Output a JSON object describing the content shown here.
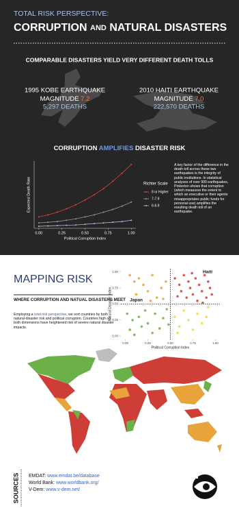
{
  "header": {
    "kicker": "TOTAL RISK PERSPECTIVE:",
    "title_parts": [
      "CORRUPTION",
      "AND",
      "NATURAL DISASTERS"
    ]
  },
  "comparison": {
    "heading": "COMPARABLE DISASTERS YIELD VERY DIFFERENT DEATH TOLLS",
    "events": [
      {
        "name": "1995 KOBE EARTHQUAKE",
        "magnitude_label": "MAGNITUDE",
        "magnitude": "7.2",
        "deaths": "5,297 DEATHS"
      },
      {
        "name": "2010 HAITI EARTHQUAKE",
        "magnitude_label": "MAGNITUDE",
        "magnitude": "7.0",
        "deaths": "222,570 DEATHS"
      }
    ]
  },
  "amplifies": {
    "heading_parts": [
      "CORRUPTION",
      "AMPLIFIES",
      "DISASTER RISK"
    ],
    "note": "A key factor of the difference in the death toll across these two earthquakes is the integrity of public institutions.  In statistical analyses of over 900 earthquakes, Pinkerton shows that corruption (which measures the extent to which an executive or their agents misappropriates public funds for personal use) amplifies the resulting death toll of an earthquake."
  },
  "mapping": {
    "title": "MAPPING RISK",
    "subheading": "WHERE CORRUPTION AND NATUAL DISASTERS MEET",
    "intro_parts": [
      "Employing a ",
      "total risk perspective",
      ", we sort countries by both natural-disaster risk and political corruption.  Countries high on both dimensions have heightened risk of severe natural disaster impacts."
    ]
  },
  "sources": {
    "title": "SOURCES",
    "items": [
      {
        "label": "EMDAT:",
        "url": "www.emdat.be/database"
      },
      {
        "label": "World Bank:",
        "url": "www.worldbank.org/"
      },
      {
        "label": "V-Dem:",
        "url": "www.v-dem.net/"
      }
    ]
  },
  "chart_data": [
    {
      "type": "line",
      "xlabel": "Political Corruption Index",
      "ylabel": "Expected Death Rate",
      "legend_title": "Richter Scale",
      "x": [
        0,
        0.1,
        0.2,
        0.3,
        0.4,
        0.5,
        0.6,
        0.7,
        0.8,
        0.9,
        1
      ],
      "series": [
        {
          "name": "8 or Higher",
          "color": "#e0443a",
          "values": [
            0.17,
            0.2,
            0.24,
            0.29,
            0.35,
            0.42,
            0.5,
            0.59,
            0.7,
            0.82,
            0.95
          ]
        },
        {
          "name": "7-7.9",
          "color": "#9a9a9a",
          "values": [
            0.08,
            0.09,
            0.1,
            0.12,
            0.14,
            0.17,
            0.2,
            0.24,
            0.28,
            0.33,
            0.39
          ]
        },
        {
          "name": "6-6.9",
          "color": "#aebde0",
          "values": [
            0.03,
            0.035,
            0.04,
            0.045,
            0.05,
            0.06,
            0.07,
            0.08,
            0.09,
            0.1,
            0.12
          ]
        }
      ],
      "xlim": [
        -0.05,
        1.05
      ],
      "ylim": [
        0,
        1
      ],
      "xticks": [
        {
          "value": 0,
          "label": "0.00"
        },
        {
          "value": 0.25,
          "label": "0.25"
        },
        {
          "value": 0.5,
          "label": "0.50"
        },
        {
          "value": 0.75,
          "label": "0.75"
        },
        {
          "value": 1,
          "label": "1.00"
        }
      ]
    },
    {
      "type": "scatter",
      "xlabel": "Political Corruption Index",
      "ylabel": "Natural Disaster Index",
      "annotations": [
        "Haiti",
        "Japan"
      ],
      "divider": 0.5,
      "series": [
        {
          "color": "#e8a33a",
          "x": [
            0.05,
            0.1,
            0.15,
            0.2,
            0.25,
            0.3,
            0.35,
            0.4,
            0.45,
            0.12,
            0.28,
            0.42
          ],
          "y": [
            0.95,
            0.85,
            0.9,
            0.8,
            0.7,
            0.95,
            0.6,
            0.75,
            0.85,
            0.65,
            0.55,
            0.58
          ]
        },
        {
          "color": "#cf3e36",
          "x": [
            0.55,
            0.6,
            0.62,
            0.65,
            0.68,
            0.7,
            0.72,
            0.75,
            0.78,
            0.8,
            0.82,
            0.85,
            0.88,
            0.9,
            0.92,
            0.94,
            0.96,
            0.58,
            0.74,
            0.86
          ],
          "y": [
            0.9,
            0.8,
            0.7,
            0.95,
            0.6,
            0.85,
            0.75,
            0.65,
            0.9,
            0.55,
            0.8,
            0.7,
            0.95,
            0.6,
            0.85,
            0.75,
            0.65,
            0.62,
            0.98,
            0.52
          ]
        },
        {
          "color": "#6cb04a",
          "x": [
            0.02,
            0.05,
            0.08,
            0.1,
            0.15,
            0.18,
            0.22,
            0.25,
            0.3,
            0.33,
            0.38,
            0.42,
            0.46,
            0.48
          ],
          "y": [
            0.35,
            0.1,
            0.25,
            0.02,
            0.3,
            0.15,
            0.4,
            0.2,
            0.05,
            0.35,
            0.12,
            0.28,
            0.42,
            0.18
          ]
        },
        {
          "color": "#f0dc3a",
          "x": [
            0.55,
            0.6,
            0.65,
            0.7,
            0.75,
            0.8,
            0.85,
            0.9,
            0.92,
            0.58
          ],
          "y": [
            0.3,
            0.15,
            0.4,
            0.25,
            0.1,
            0.35,
            0.2,
            0.3,
            0.45,
            0.05
          ]
        }
      ],
      "xlim": [
        -0.05,
        1.05
      ],
      "ylim": [
        -0.05,
        1.05
      ],
      "xticks": [
        {
          "value": 0,
          "label": "0.00"
        },
        {
          "value": 0.25,
          "label": "0.25"
        },
        {
          "value": 0.5,
          "label": "0.50"
        },
        {
          "value": 0.75,
          "label": "0.75"
        },
        {
          "value": 1,
          "label": "1.00"
        }
      ],
      "yticks": [
        {
          "value": 0,
          "label": "0.00"
        },
        {
          "value": 0.25,
          "label": "0.25"
        },
        {
          "value": 0.5,
          "label": "0.50"
        },
        {
          "value": 0.75,
          "label": "0.75"
        },
        {
          "value": 1,
          "label": "1.00"
        }
      ]
    }
  ]
}
